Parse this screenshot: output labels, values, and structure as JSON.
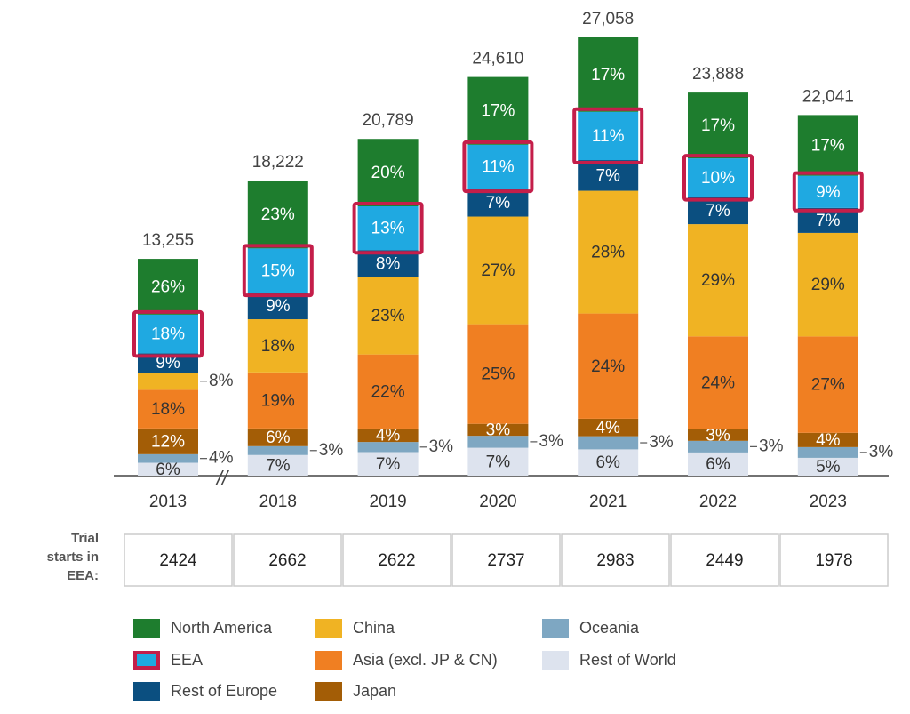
{
  "chart_data": {
    "type": "bar",
    "stacked": true,
    "categories": [
      "2013",
      "2018",
      "2019",
      "2020",
      "2021",
      "2022",
      "2023"
    ],
    "totals": [
      {
        "value": 13255,
        "label": "13,255"
      },
      {
        "value": 18222,
        "label": "18,222"
      },
      {
        "value": 20789,
        "label": "20,789"
      },
      {
        "value": 24610,
        "label": "24,610"
      },
      {
        "value": 27058,
        "label": "27,058"
      },
      {
        "value": 23888,
        "label": "23,888"
      },
      {
        "value": 22041,
        "label": "22,041"
      }
    ],
    "series": [
      {
        "name": "North America",
        "color": "#1e7d2e",
        "values": [
          26,
          23,
          20,
          17,
          17,
          17,
          17
        ],
        "value_labels": [
          "26%",
          "23%",
          "20%",
          "17%",
          "17%",
          "17%",
          "17%"
        ]
      },
      {
        "name": "EEA",
        "color": "#1fa9e1",
        "outline": "#c41e4a",
        "values": [
          18,
          15,
          13,
          11,
          11,
          10,
          9
        ],
        "value_labels": [
          "18%",
          "15%",
          "13%",
          "11%",
          "11%",
          "10%",
          "9%"
        ]
      },
      {
        "name": "Rest of Europe",
        "color": "#0b4f80",
        "values": [
          9,
          9,
          8,
          7,
          7,
          7,
          7
        ],
        "value_labels": [
          "9%",
          "9%",
          "8%",
          "7%",
          "7%",
          "7%",
          "7%"
        ]
      },
      {
        "name": "China",
        "color": "#f0b323",
        "values": [
          8,
          18,
          23,
          27,
          28,
          29,
          29
        ],
        "value_labels": [
          "8%",
          "18%",
          "23%",
          "27%",
          "28%",
          "29%",
          "29%"
        ]
      },
      {
        "name": "Asia (excl. JP & CN)",
        "color": "#f07f22",
        "values": [
          18,
          19,
          22,
          25,
          24,
          24,
          27
        ],
        "value_labels": [
          "18%",
          "19%",
          "22%",
          "25%",
          "24%",
          "24%",
          "27%"
        ]
      },
      {
        "name": "Japan",
        "color": "#a35d06",
        "values": [
          12,
          6,
          4,
          3,
          4,
          3,
          4
        ],
        "value_labels": [
          "12%",
          "6%",
          "4%",
          "3%",
          "4%",
          "3%",
          "4%"
        ]
      },
      {
        "name": "Oceania",
        "color": "#7ea7c2",
        "values": [
          4,
          3,
          3,
          3,
          3,
          3,
          3
        ],
        "value_labels": [
          "4%",
          "3%",
          "3%",
          "3%",
          "3%",
          "3%",
          "3%"
        ]
      },
      {
        "name": "Rest of World",
        "color": "#dde3ee",
        "values": [
          6,
          7,
          7,
          7,
          6,
          6,
          5
        ],
        "value_labels": [
          "6%",
          "7%",
          "7%",
          "7%",
          "6%",
          "6%",
          "5%"
        ]
      }
    ],
    "table": {
      "label": [
        "Trial",
        "starts in",
        "EEA:"
      ],
      "values": [
        2424,
        2662,
        2622,
        2737,
        2983,
        2449,
        1978
      ]
    }
  }
}
